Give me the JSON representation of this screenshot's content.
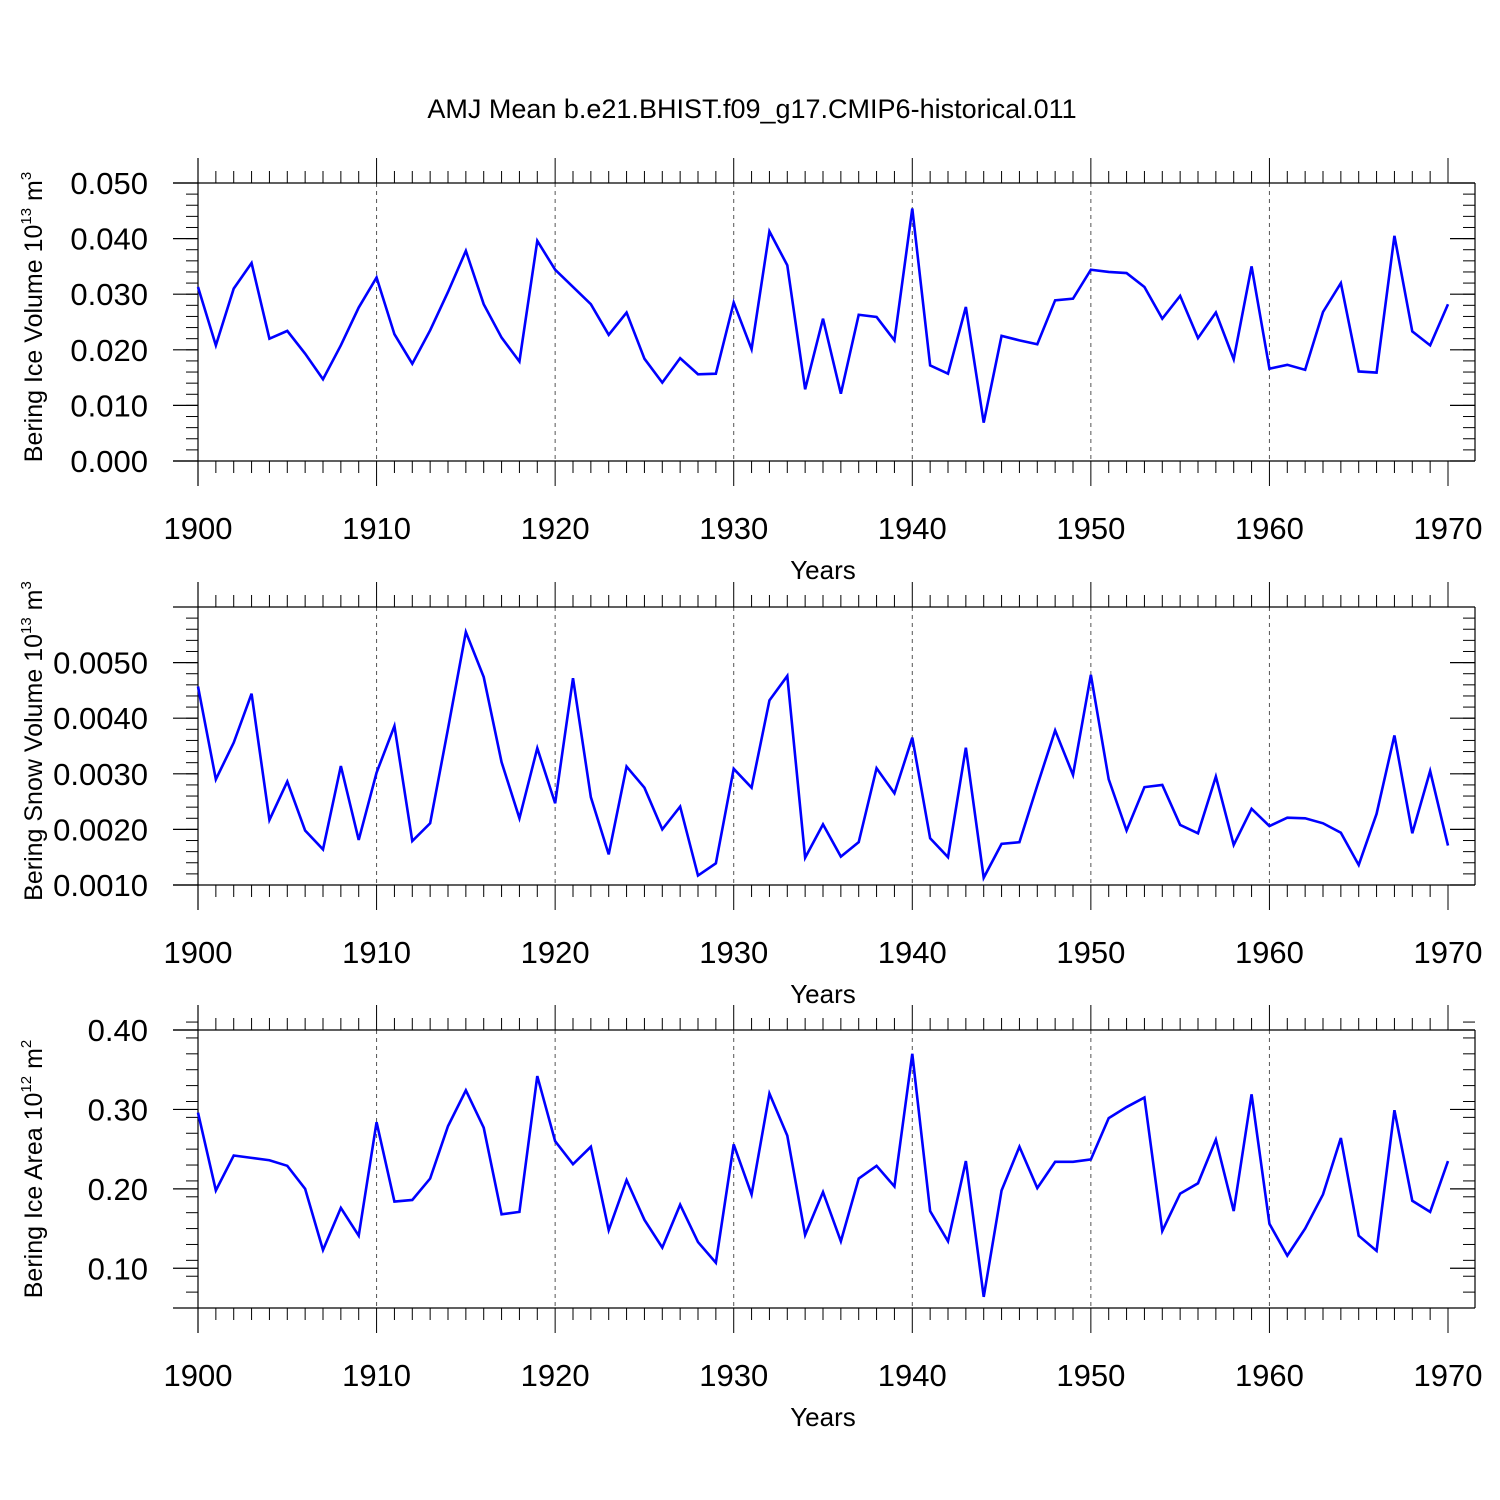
{
  "title": "AMJ Mean b.e21.BHIST.f09_g17.CMIP6-historical.011",
  "line_color": "#0000ff",
  "chart_data": [
    {
      "type": "line",
      "ylabel_main": "Bering Ice Volume 10",
      "ylabel_exp": "13",
      "ylabel_unit": " m",
      "ylabel_unit_exp": "3",
      "xlabel": "Years",
      "xlim": [
        1900,
        1970
      ],
      "ylim": [
        0.0,
        0.05
      ],
      "x_ticks": [
        1900,
        1910,
        1920,
        1930,
        1940,
        1950,
        1960,
        1970
      ],
      "x_tick_labels": [
        "1900",
        "1910",
        "1920",
        "1930",
        "1940",
        "1950",
        "1960",
        "1970"
      ],
      "y_ticks": [
        0.0,
        0.01,
        0.02,
        0.03,
        0.04,
        0.05
      ],
      "y_tick_labels": [
        "0.000",
        "0.010",
        "0.020",
        "0.030",
        "0.040",
        "0.050"
      ],
      "y_minor_step": 0.002,
      "x": [
        1900,
        1901,
        1902,
        1903,
        1904,
        1905,
        1906,
        1907,
        1908,
        1909,
        1910,
        1911,
        1912,
        1913,
        1914,
        1915,
        1916,
        1917,
        1918,
        1919,
        1920,
        1921,
        1922,
        1923,
        1924,
        1925,
        1926,
        1927,
        1928,
        1929,
        1930,
        1931,
        1932,
        1933,
        1934,
        1935,
        1936,
        1937,
        1938,
        1939,
        1940,
        1941,
        1942,
        1943,
        1944,
        1945,
        1946,
        1947,
        1948,
        1949,
        1950,
        1951,
        1952,
        1953,
        1954,
        1955,
        1956,
        1957,
        1958,
        1959,
        1960,
        1961,
        1962,
        1963,
        1964,
        1965,
        1966,
        1967,
        1968,
        1969,
        1970
      ],
      "values": [
        0.0313,
        0.0208,
        0.031,
        0.0356,
        0.022,
        0.0234,
        0.0193,
        0.0147,
        0.0208,
        0.0276,
        0.033,
        0.0228,
        0.0175,
        0.0235,
        0.0304,
        0.0378,
        0.0282,
        0.0222,
        0.0179,
        0.0396,
        0.0344,
        0.0313,
        0.0282,
        0.0227,
        0.0267,
        0.0184,
        0.0141,
        0.0185,
        0.0156,
        0.0157,
        0.0285,
        0.0201,
        0.0413,
        0.0352,
        0.0129,
        0.0256,
        0.0121,
        0.0263,
        0.0259,
        0.0217,
        0.0454,
        0.0172,
        0.0157,
        0.0277,
        0.0069,
        0.0225,
        0.0217,
        0.021,
        0.0289,
        0.0292,
        0.0344,
        0.034,
        0.0338,
        0.0313,
        0.0256,
        0.0297,
        0.0221,
        0.0267,
        0.0183,
        0.035,
        0.0166,
        0.0173,
        0.0164,
        0.0268,
        0.032,
        0.0161,
        0.0159,
        0.0405,
        0.0233,
        0.0208,
        0.0282
      ]
    },
    {
      "type": "line",
      "ylabel_main": "Bering Snow Volume 10",
      "ylabel_exp": "13",
      "ylabel_unit": " m",
      "ylabel_unit_exp": "3",
      "xlabel": "Years",
      "xlim": [
        1900,
        1970
      ],
      "ylim": [
        0.001,
        0.006
      ],
      "x_ticks": [
        1900,
        1910,
        1920,
        1930,
        1940,
        1950,
        1960,
        1970
      ],
      "x_tick_labels": [
        "1900",
        "1910",
        "1920",
        "1930",
        "1940",
        "1950",
        "1960",
        "1970"
      ],
      "y_ticks": [
        0.001,
        0.002,
        0.003,
        0.004,
        0.005
      ],
      "y_tick_labels": [
        "0.0010",
        "0.0020",
        "0.0030",
        "0.0040",
        "0.0050"
      ],
      "y_minor_step": 0.0002,
      "x": [
        1900,
        1901,
        1902,
        1903,
        1904,
        1905,
        1906,
        1907,
        1908,
        1909,
        1910,
        1911,
        1912,
        1913,
        1914,
        1915,
        1916,
        1917,
        1918,
        1919,
        1920,
        1921,
        1922,
        1923,
        1924,
        1925,
        1926,
        1927,
        1928,
        1929,
        1930,
        1931,
        1932,
        1933,
        1934,
        1935,
        1936,
        1937,
        1938,
        1939,
        1940,
        1941,
        1942,
        1943,
        1944,
        1945,
        1946,
        1947,
        1948,
        1949,
        1950,
        1951,
        1952,
        1953,
        1954,
        1955,
        1956,
        1957,
        1958,
        1959,
        1960,
        1961,
        1962,
        1963,
        1964,
        1965,
        1966,
        1967,
        1968,
        1969,
        1970
      ],
      "values": [
        0.00457,
        0.0029,
        0.00356,
        0.00444,
        0.00217,
        0.00286,
        0.00198,
        0.00164,
        0.00314,
        0.00181,
        0.00302,
        0.00386,
        0.00179,
        0.00211,
        0.00381,
        0.00555,
        0.00474,
        0.00321,
        0.0022,
        0.00346,
        0.00247,
        0.00472,
        0.00258,
        0.00155,
        0.00313,
        0.00275,
        0.002,
        0.00241,
        0.00117,
        0.00139,
        0.00309,
        0.00275,
        0.00432,
        0.00476,
        0.00149,
        0.00209,
        0.00151,
        0.00177,
        0.0031,
        0.00265,
        0.00365,
        0.00184,
        0.0015,
        0.00347,
        0.00113,
        0.00174,
        0.00177,
        0.00279,
        0.00378,
        0.00298,
        0.00478,
        0.0029,
        0.00198,
        0.00276,
        0.0028,
        0.00208,
        0.00193,
        0.00295,
        0.00172,
        0.00237,
        0.00206,
        0.00221,
        0.0022,
        0.00211,
        0.00194,
        0.00136,
        0.00228,
        0.00369,
        0.00193,
        0.00305,
        0.00171
      ]
    },
    {
      "type": "line",
      "ylabel_main": "Bering Ice Area 10",
      "ylabel_exp": "12",
      "ylabel_unit": " m",
      "ylabel_unit_exp": "2",
      "xlabel": "Years",
      "xlim": [
        1900,
        1970
      ],
      "ylim": [
        0.05,
        0.4
      ],
      "x_ticks": [
        1900,
        1910,
        1920,
        1930,
        1940,
        1950,
        1960,
        1970
      ],
      "x_tick_labels": [
        "1900",
        "1910",
        "1920",
        "1930",
        "1940",
        "1950",
        "1960",
        "1970"
      ],
      "y_ticks": [
        0.1,
        0.2,
        0.3,
        0.4
      ],
      "y_tick_labels": [
        "0.10",
        "0.20",
        "0.30",
        "0.40"
      ],
      "y_minor_step": 0.02,
      "x": [
        1900,
        1901,
        1902,
        1903,
        1904,
        1905,
        1906,
        1907,
        1908,
        1909,
        1910,
        1911,
        1912,
        1913,
        1914,
        1915,
        1916,
        1917,
        1918,
        1919,
        1920,
        1921,
        1922,
        1923,
        1924,
        1925,
        1926,
        1927,
        1928,
        1929,
        1930,
        1931,
        1932,
        1933,
        1934,
        1935,
        1936,
        1937,
        1938,
        1939,
        1940,
        1941,
        1942,
        1943,
        1944,
        1945,
        1946,
        1947,
        1948,
        1949,
        1950,
        1951,
        1952,
        1953,
        1954,
        1955,
        1956,
        1957,
        1958,
        1959,
        1960,
        1961,
        1962,
        1963,
        1964,
        1965,
        1966,
        1967,
        1968,
        1969,
        1970
      ],
      "values": [
        0.296,
        0.198,
        0.242,
        0.239,
        0.236,
        0.229,
        0.2,
        0.123,
        0.176,
        0.141,
        0.284,
        0.184,
        0.186,
        0.213,
        0.279,
        0.324,
        0.277,
        0.168,
        0.171,
        0.342,
        0.26,
        0.231,
        0.253,
        0.148,
        0.211,
        0.161,
        0.126,
        0.18,
        0.133,
        0.107,
        0.256,
        0.193,
        0.32,
        0.267,
        0.142,
        0.196,
        0.134,
        0.213,
        0.229,
        0.203,
        0.37,
        0.172,
        0.134,
        0.235,
        0.064,
        0.198,
        0.253,
        0.201,
        0.234,
        0.234,
        0.237,
        0.289,
        0.303,
        0.315,
        0.147,
        0.194,
        0.207,
        0.262,
        0.172,
        0.319,
        0.156,
        0.116,
        0.15,
        0.193,
        0.264,
        0.141,
        0.122,
        0.299,
        0.185,
        0.171,
        0.235
      ]
    }
  ]
}
